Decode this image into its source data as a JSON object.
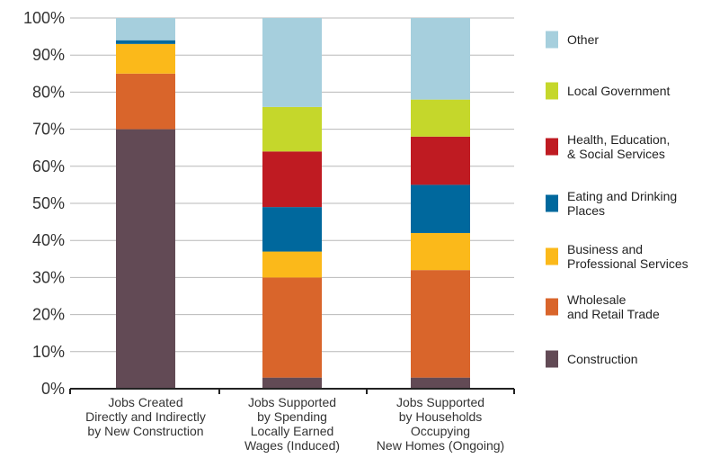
{
  "chart_data": {
    "type": "bar",
    "stacked": true,
    "title": "",
    "xlabel": "",
    "ylabel": "",
    "ylim": [
      0,
      100
    ],
    "yticks": [
      "0%",
      "10%",
      "20%",
      "30%",
      "40%",
      "50%",
      "60%",
      "70%",
      "80%",
      "90%",
      "100%"
    ],
    "grid": true,
    "legend_position": "right",
    "categories": [
      [
        "Jobs Created",
        "Directly and Indirectly",
        "by New Construction"
      ],
      [
        "Jobs Supported",
        "by Spending",
        "Locally Earned",
        "Wages (Induced)"
      ],
      [
        "Jobs Supported",
        "by Households",
        "Occupying",
        "New Homes (Ongoing)"
      ]
    ],
    "series": [
      {
        "name": "Construction",
        "color": "#624a55",
        "values": [
          70,
          3,
          3
        ]
      },
      {
        "name": "Wholesale and Retail Trade",
        "color": "#d9652b",
        "values": [
          15,
          27,
          29
        ]
      },
      {
        "name": "Business and Professional Services",
        "color": "#fbb91a",
        "values": [
          8,
          7,
          10
        ]
      },
      {
        "name": "Eating and Drinking Places",
        "color": "#00689d",
        "values": [
          1,
          12,
          13
        ]
      },
      {
        "name": "Health, Education, & Social Services",
        "color": "#bf1b22",
        "values": [
          0,
          15,
          13
        ]
      },
      {
        "name": "Local Government",
        "color": "#c5d72b",
        "values": [
          0,
          12,
          10
        ]
      },
      {
        "name": "Other",
        "color": "#a6cfdd",
        "values": [
          6,
          24,
          22
        ]
      }
    ],
    "legend": [
      {
        "lines": [
          "Other"
        ],
        "color": "#a6cfdd"
      },
      {
        "lines": [
          "Local Government"
        ],
        "color": "#c5d72b"
      },
      {
        "lines": [
          "Health, Education,",
          "& Social Services"
        ],
        "color": "#bf1b22"
      },
      {
        "lines": [
          "Eating and Drinking",
          "Places"
        ],
        "color": "#00689d"
      },
      {
        "lines": [
          "Business and",
          "Professional Services"
        ],
        "color": "#fbb91a"
      },
      {
        "lines": [
          "Wholesale",
          "and Retail Trade"
        ],
        "color": "#d9652b"
      },
      {
        "lines": [
          "Construction"
        ],
        "color": "#624a55"
      }
    ]
  }
}
